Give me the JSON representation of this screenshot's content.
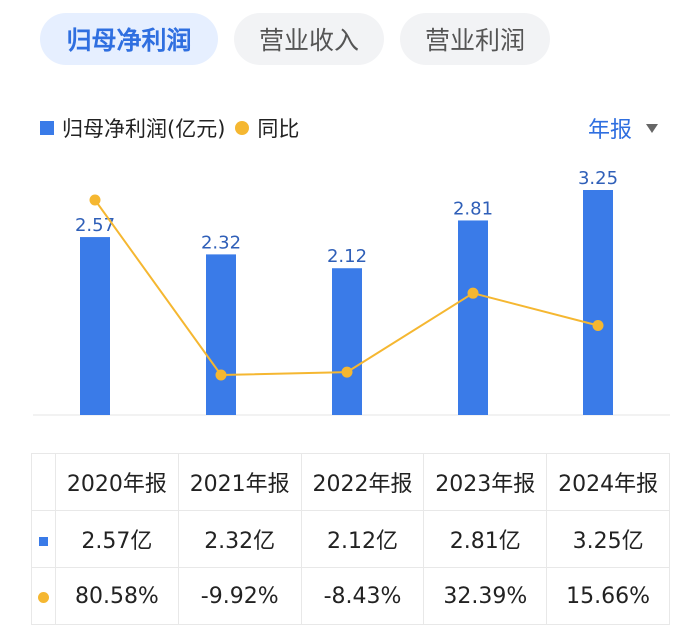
{
  "tabs": [
    {
      "label": "归母净利润",
      "active": true
    },
    {
      "label": "营业收入",
      "active": false
    },
    {
      "label": "营业利润",
      "active": false
    }
  ],
  "legend": {
    "bar_label": "归母净利润(亿元)",
    "line_label": "同比"
  },
  "period": {
    "label": "年报",
    "icon": "caret-down-icon"
  },
  "colors": {
    "bar": "#3a7be8",
    "line": "#f5b731",
    "positive": "#d9403a",
    "negative": "#2e9a56",
    "accent": "#2f6fe0"
  },
  "chart_data": {
    "type": "bar",
    "categories": [
      "2020年报",
      "2021年报",
      "2022年报",
      "2023年报",
      "2024年报"
    ],
    "series": [
      {
        "name": "归母净利润(亿元)",
        "type": "bar",
        "values": [
          2.57,
          2.32,
          2.12,
          2.81,
          3.25
        ],
        "labels": [
          "2.57",
          "2.32",
          "2.12",
          "2.81",
          "3.25"
        ]
      },
      {
        "name": "同比",
        "type": "line",
        "values": [
          80.58,
          -9.92,
          -8.43,
          32.39,
          15.66
        ]
      }
    ],
    "ylim": [
      0,
      3.25
    ],
    "grid": false,
    "legend_position": "top-left"
  },
  "table": {
    "headers": [
      "2020年报",
      "2021年报",
      "2022年报",
      "2023年报",
      "2024年报"
    ],
    "rows": [
      {
        "marker": "bar-marker",
        "cells": [
          "2.57亿",
          "2.32亿",
          "2.12亿",
          "2.81亿",
          "3.25亿"
        ]
      },
      {
        "marker": "line-marker",
        "cells": [
          "80.58%",
          "-9.92%",
          "-8.43%",
          "32.39%",
          "15.66%"
        ]
      }
    ]
  }
}
